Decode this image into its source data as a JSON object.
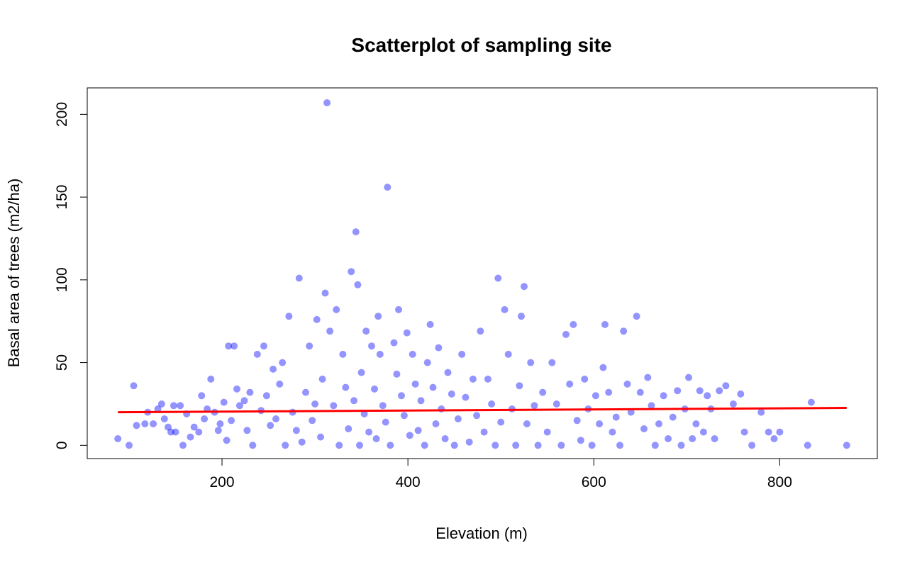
{
  "chart_data": {
    "type": "scatter",
    "title": "Scatterplot of sampling site",
    "xlabel": "Elevation (m)",
    "ylabel": "Basal area of trees (m2/ha)",
    "xlim": [
      55,
      905
    ],
    "ylim": [
      -8,
      216
    ],
    "xticks": [
      200,
      400,
      600,
      800
    ],
    "yticks": [
      0,
      50,
      100,
      150,
      200
    ],
    "grid": false,
    "legend": "none",
    "point_color": "#0000ff",
    "point_opacity": 0.42,
    "series": [
      {
        "points": [
          [
            88,
            4
          ],
          [
            100,
            0
          ],
          [
            105,
            36
          ],
          [
            108,
            12
          ],
          [
            117,
            13
          ],
          [
            120,
            20
          ],
          [
            126,
            13
          ],
          [
            131,
            22
          ],
          [
            135,
            25
          ],
          [
            138,
            16
          ],
          [
            142,
            11
          ],
          [
            145,
            8
          ],
          [
            148,
            24
          ],
          [
            150,
            8
          ],
          [
            155,
            24
          ],
          [
            158,
            0
          ],
          [
            162,
            19
          ],
          [
            166,
            5
          ],
          [
            170,
            11
          ],
          [
            175,
            8
          ],
          [
            178,
            30
          ],
          [
            181,
            16
          ],
          [
            184,
            22
          ],
          [
            188,
            40
          ],
          [
            192,
            20
          ],
          [
            196,
            9
          ],
          [
            198,
            13
          ],
          [
            202,
            26
          ],
          [
            205,
            3
          ],
          [
            207,
            60
          ],
          [
            210,
            15
          ],
          [
            213,
            60
          ],
          [
            216,
            34
          ],
          [
            219,
            24
          ],
          [
            224,
            27
          ],
          [
            227,
            9
          ],
          [
            230,
            32
          ],
          [
            233,
            0
          ],
          [
            238,
            55
          ],
          [
            242,
            21
          ],
          [
            245,
            60
          ],
          [
            248,
            30
          ],
          [
            252,
            12
          ],
          [
            255,
            46
          ],
          [
            258,
            16
          ],
          [
            262,
            37
          ],
          [
            265,
            50
          ],
          [
            268,
            0
          ],
          [
            272,
            78
          ],
          [
            276,
            20
          ],
          [
            280,
            9
          ],
          [
            283,
            101
          ],
          [
            286,
            2
          ],
          [
            290,
            32
          ],
          [
            294,
            60
          ],
          [
            297,
            15
          ],
          [
            300,
            25
          ],
          [
            302,
            76
          ],
          [
            306,
            5
          ],
          [
            308,
            40
          ],
          [
            311,
            92
          ],
          [
            313,
            207
          ],
          [
            316,
            69
          ],
          [
            320,
            24
          ],
          [
            323,
            82
          ],
          [
            326,
            0
          ],
          [
            330,
            55
          ],
          [
            333,
            35
          ],
          [
            336,
            10
          ],
          [
            339,
            105
          ],
          [
            342,
            27
          ],
          [
            344,
            129
          ],
          [
            346,
            97
          ],
          [
            348,
            0
          ],
          [
            350,
            44
          ],
          [
            353,
            19
          ],
          [
            355,
            69
          ],
          [
            358,
            8
          ],
          [
            361,
            60
          ],
          [
            364,
            34
          ],
          [
            366,
            4
          ],
          [
            368,
            78
          ],
          [
            370,
            55
          ],
          [
            373,
            24
          ],
          [
            376,
            14
          ],
          [
            378,
            156
          ],
          [
            381,
            0
          ],
          [
            385,
            62
          ],
          [
            388,
            43
          ],
          [
            390,
            82
          ],
          [
            393,
            30
          ],
          [
            396,
            18
          ],
          [
            399,
            68
          ],
          [
            402,
            6
          ],
          [
            405,
            55
          ],
          [
            408,
            37
          ],
          [
            411,
            9
          ],
          [
            414,
            27
          ],
          [
            418,
            0
          ],
          [
            421,
            50
          ],
          [
            424,
            73
          ],
          [
            427,
            35
          ],
          [
            430,
            13
          ],
          [
            433,
            59
          ],
          [
            436,
            22
          ],
          [
            440,
            4
          ],
          [
            443,
            44
          ],
          [
            447,
            31
          ],
          [
            450,
            0
          ],
          [
            454,
            16
          ],
          [
            458,
            55
          ],
          [
            462,
            29
          ],
          [
            466,
            2
          ],
          [
            470,
            40
          ],
          [
            474,
            18
          ],
          [
            478,
            69
          ],
          [
            482,
            8
          ],
          [
            486,
            40
          ],
          [
            490,
            25
          ],
          [
            494,
            0
          ],
          [
            497,
            101
          ],
          [
            500,
            14
          ],
          [
            504,
            82
          ],
          [
            508,
            55
          ],
          [
            512,
            22
          ],
          [
            516,
            0
          ],
          [
            520,
            36
          ],
          [
            522,
            78
          ],
          [
            525,
            96
          ],
          [
            528,
            13
          ],
          [
            532,
            50
          ],
          [
            536,
            24
          ],
          [
            540,
            0
          ],
          [
            545,
            32
          ],
          [
            550,
            8
          ],
          [
            555,
            50
          ],
          [
            560,
            25
          ],
          [
            565,
            0
          ],
          [
            570,
            67
          ],
          [
            574,
            37
          ],
          [
            578,
            73
          ],
          [
            582,
            15
          ],
          [
            586,
            3
          ],
          [
            590,
            40
          ],
          [
            594,
            22
          ],
          [
            598,
            0
          ],
          [
            602,
            30
          ],
          [
            606,
            13
          ],
          [
            610,
            47
          ],
          [
            612,
            73
          ],
          [
            616,
            32
          ],
          [
            620,
            8
          ],
          [
            624,
            17
          ],
          [
            628,
            0
          ],
          [
            632,
            69
          ],
          [
            636,
            37
          ],
          [
            640,
            20
          ],
          [
            646,
            78
          ],
          [
            650,
            32
          ],
          [
            654,
            10
          ],
          [
            658,
            41
          ],
          [
            662,
            24
          ],
          [
            666,
            0
          ],
          [
            670,
            13
          ],
          [
            675,
            30
          ],
          [
            680,
            4
          ],
          [
            685,
            17
          ],
          [
            690,
            33
          ],
          [
            694,
            0
          ],
          [
            698,
            22
          ],
          [
            702,
            41
          ],
          [
            706,
            4
          ],
          [
            710,
            13
          ],
          [
            714,
            33
          ],
          [
            718,
            8
          ],
          [
            722,
            30
          ],
          [
            726,
            22
          ],
          [
            730,
            4
          ],
          [
            735,
            33
          ],
          [
            742,
            36
          ],
          [
            750,
            25
          ],
          [
            758,
            31
          ],
          [
            762,
            8
          ],
          [
            770,
            0
          ],
          [
            780,
            20
          ],
          [
            788,
            8
          ],
          [
            794,
            4
          ],
          [
            800,
            8
          ],
          [
            830,
            0
          ],
          [
            834,
            26
          ],
          [
            872,
            0
          ]
        ]
      },
      {
        "name": "",
        "type": "line",
        "color": "#ff0000",
        "points": [
          [
            88,
            20.0
          ],
          [
            872,
            22.6
          ]
        ]
      }
    ]
  }
}
